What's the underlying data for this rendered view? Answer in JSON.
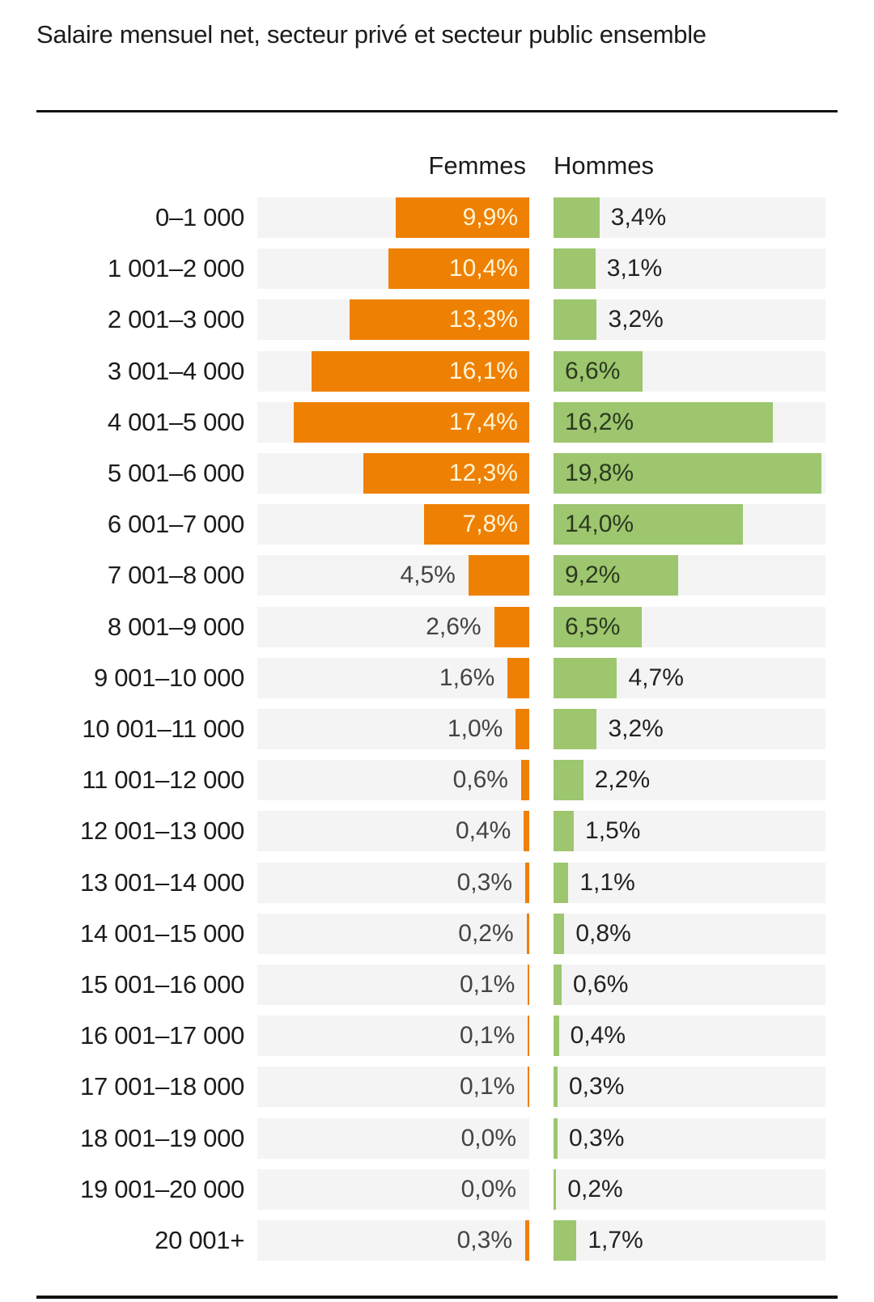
{
  "chart_data": {
    "type": "bar",
    "orientation": "horizontal-diverging",
    "title": "Salaire mensuel net, secteur privé et secteur public ensemble",
    "xlabel": "",
    "ylabel": "",
    "legend": [
      "Femmes",
      "Hommes"
    ],
    "legend_placement": "top",
    "unit": "%",
    "xlim": [
      0,
      20
    ],
    "grid": false,
    "categories": [
      "0–1 000",
      "1 001–2 000",
      "2 001–3 000",
      "3 001–4 000",
      "4 001–5 000",
      "5 001–6 000",
      "6 001–7 000",
      "7 001–8 000",
      "8 001–9 000",
      "9 001–10 000",
      "10 001–11 000",
      "11 001–12 000",
      "12 001–13 000",
      "13 001–14 000",
      "14 001–15 000",
      "15 001–16 000",
      "16 001–17 000",
      "17 001–18 000",
      "18 001–19 000",
      "19 001–20 000",
      "20 001+"
    ],
    "series": [
      {
        "name": "Femmes",
        "color": "#ee8003",
        "values": [
          9.9,
          10.4,
          13.3,
          16.1,
          17.4,
          12.3,
          7.8,
          4.5,
          2.6,
          1.6,
          1.0,
          0.6,
          0.4,
          0.3,
          0.2,
          0.1,
          0.1,
          0.1,
          0.0,
          0.0,
          0.3
        ],
        "labels": [
          "9,9%",
          "10,4%",
          "13,3%",
          "16,1%",
          "17,4%",
          "12,3%",
          "7,8%",
          "4,5%",
          "2,6%",
          "1,6%",
          "1,0%",
          "0,6%",
          "0,4%",
          "0,3%",
          "0,2%",
          "0,1%",
          "0,1%",
          "0,1%",
          "0,0%",
          "0,0%",
          "0,3%"
        ]
      },
      {
        "name": "Hommes",
        "color": "#9dc66f",
        "values": [
          3.4,
          3.1,
          3.2,
          6.6,
          16.2,
          19.8,
          14.0,
          9.2,
          6.5,
          4.7,
          3.2,
          2.2,
          1.5,
          1.1,
          0.8,
          0.6,
          0.4,
          0.3,
          0.3,
          0.2,
          1.7
        ],
        "labels": [
          "3,4%",
          "3,1%",
          "3,2%",
          "6,6%",
          "16,2%",
          "19,8%",
          "14,0%",
          "9,2%",
          "6,5%",
          "4,7%",
          "3,2%",
          "2,2%",
          "1,5%",
          "1,1%",
          "0,8%",
          "0,6%",
          "0,4%",
          "0,3%",
          "0,3%",
          "0,2%",
          "1,7%"
        ]
      }
    ]
  }
}
